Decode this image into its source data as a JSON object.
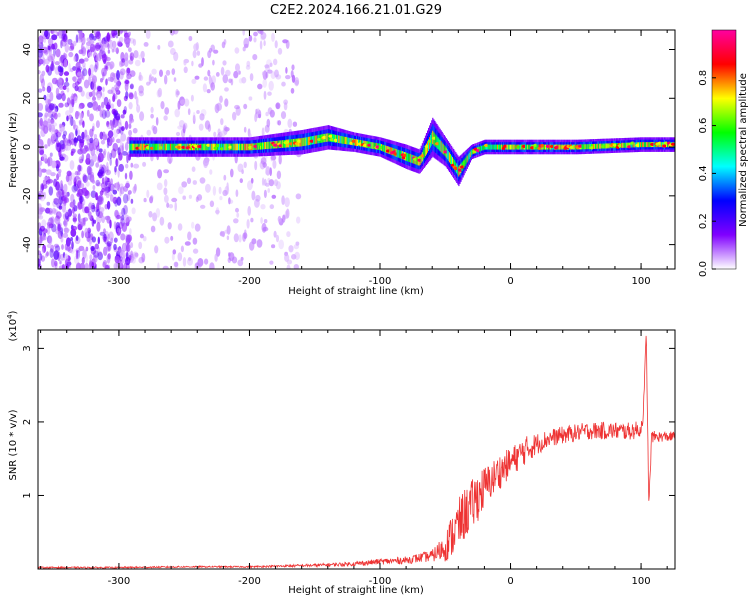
{
  "chart_data": [
    {
      "type": "heatmap",
      "title": "C2E2.2024.166.21.01.G29",
      "xlabel": "Height of straight line (km)",
      "ylabel": "Frequency (Hz)",
      "xlim": [
        -362,
        126
      ],
      "ylim": [
        -50,
        48
      ],
      "x_ticks": [
        -300,
        -200,
        -100,
        0,
        100
      ],
      "x_tick_labels": [
        "-300",
        "-200",
        "-100",
        "0",
        "100"
      ],
      "y_ticks": [
        -40,
        -20,
        0,
        20,
        40
      ],
      "y_tick_labels": [
        "-40",
        "-20",
        "0",
        "20",
        "40"
      ],
      "colorbar": {
        "label": "Normalized spectral amplitude",
        "range": [
          0,
          1
        ],
        "ticks": [
          0.0,
          0.2,
          0.4,
          0.6,
          0.8
        ],
        "tick_labels": [
          "0.0",
          "0.2",
          "0.4",
          "0.6",
          "0.8"
        ],
        "colormap": [
          "#ffffff",
          "#8000ff",
          "#0000ff",
          "#00ffff",
          "#00ff00",
          "#ffff00",
          "#ff0000",
          "#ff00a0"
        ]
      },
      "ridge": {
        "description_values": "dominant frequency track (Hz) vs height (km)",
        "x": [
          -292,
          -250,
          -200,
          -160,
          -140,
          -120,
          -100,
          -80,
          -70,
          -60,
          -50,
          -40,
          -30,
          -20,
          0,
          50,
          100,
          126
        ],
        "y": [
          0,
          0,
          0,
          2,
          4,
          2,
          0,
          -4,
          -6,
          4,
          -2,
          -10,
          -2,
          0,
          0,
          0,
          1,
          1
        ],
        "band_halfwidth_hz": [
          4,
          4,
          4,
          5,
          5,
          4,
          4,
          5,
          5,
          8,
          6,
          6,
          3,
          3,
          3,
          3,
          3,
          3
        ]
      },
      "noise_region_x": [
        -362,
        -290
      ]
    },
    {
      "type": "line",
      "xlabel": "Height of straight line (km)",
      "ylabel": "SNR (10 * v/v)",
      "y_scale_label": "(x10",
      "y_scale_exp": "4",
      "y_scale_suffix": ")",
      "xlim": [
        -362,
        126
      ],
      "ylim": [
        0,
        3.25
      ],
      "x_ticks": [
        -300,
        -200,
        -100,
        0,
        100
      ],
      "x_tick_labels": [
        "-300",
        "-200",
        "-100",
        "0",
        "100"
      ],
      "y_ticks": [
        1,
        2,
        3
      ],
      "y_tick_labels": [
        "1",
        "2",
        "3"
      ],
      "color": "#ee3333",
      "series": [
        {
          "x": [
            -362,
            -300,
            -250,
            -200,
            -150,
            -120,
            -100,
            -80,
            -60,
            -50,
            -45,
            -40,
            -35,
            -30,
            -25,
            -20,
            -15,
            -10,
            0,
            10,
            20,
            30,
            40,
            50,
            60,
            70,
            80,
            90,
            100,
            102,
            104,
            106,
            108,
            115,
            126
          ],
          "values": [
            0.02,
            0.02,
            0.03,
            0.03,
            0.05,
            0.07,
            0.1,
            0.12,
            0.18,
            0.3,
            0.45,
            0.6,
            0.75,
            0.85,
            1.0,
            1.1,
            1.2,
            1.3,
            1.45,
            1.6,
            1.7,
            1.78,
            1.82,
            1.85,
            1.88,
            1.88,
            1.88,
            1.87,
            1.9,
            2.2,
            3.2,
            0.8,
            1.8,
            1.8,
            1.8
          ],
          "noise": [
            0.01,
            0.01,
            0.01,
            0.01,
            0.02,
            0.03,
            0.04,
            0.05,
            0.08,
            0.2,
            0.3,
            0.35,
            0.35,
            0.35,
            0.35,
            0.3,
            0.25,
            0.25,
            0.2,
            0.2,
            0.15,
            0.12,
            0.12,
            0.12,
            0.12,
            0.12,
            0.12,
            0.12,
            0.12,
            0.12,
            0.12,
            0.1,
            0.08,
            0.07,
            0.07
          ]
        }
      ]
    }
  ]
}
